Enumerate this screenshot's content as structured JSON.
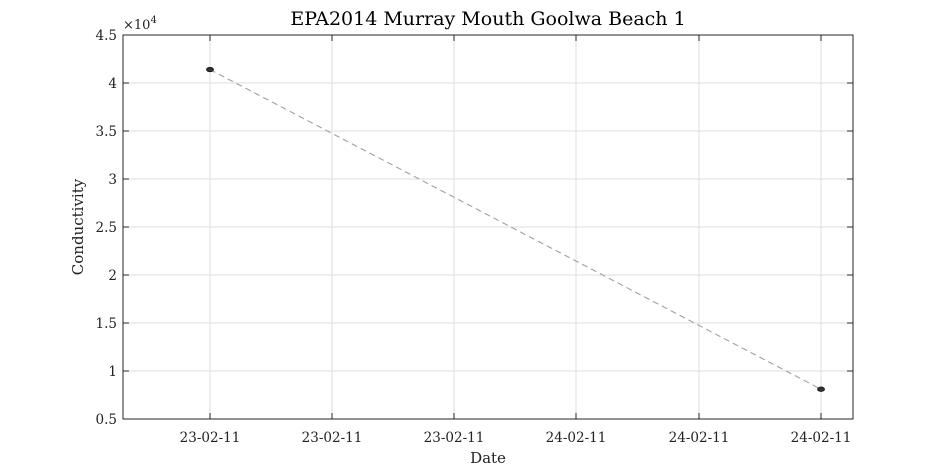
{
  "chart_data": {
    "type": "line",
    "title": "EPA2014 Murray Mouth Goolwa Beach 1",
    "xlabel": "Date",
    "ylabel": "Conductivity",
    "y_multiplier": "×10",
    "y_multiplier_exponent": "4",
    "x_tick_labels": [
      "23-02-11",
      "23-02-11",
      "23-02-11",
      "24-02-11",
      "24-02-11",
      "24-02-11"
    ],
    "y_tick_labels": [
      "0.5",
      "1",
      "1.5",
      "2",
      "2.5",
      "3",
      "3.5",
      "4",
      "4.5"
    ],
    "y_tick_values": [
      5000,
      10000,
      15000,
      20000,
      25000,
      30000,
      35000,
      40000,
      45000
    ],
    "ylim": [
      5000,
      45000
    ],
    "grid": true,
    "series": [
      {
        "x": [
          "2011-02-23 12:00",
          "2011-02-24 12:00"
        ],
        "values": [
          41400,
          8100
        ],
        "color": "#a0a0a0",
        "line_style": "dashed",
        "marker_color": "#333333"
      }
    ]
  }
}
